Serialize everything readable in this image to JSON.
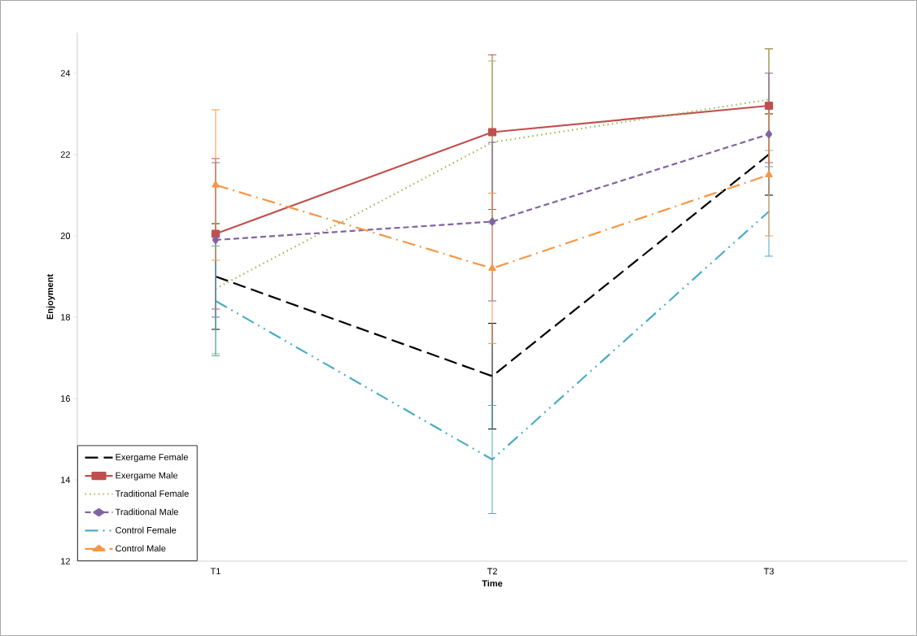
{
  "chart_data": {
    "type": "line",
    "xlabel": "Time",
    "ylabel": "Enjoyment",
    "categories": [
      "T1",
      "T2",
      "T3"
    ],
    "ylim": [
      12,
      25
    ],
    "yticks": [
      12,
      14,
      16,
      18,
      20,
      22,
      24
    ],
    "grid": false,
    "legend": "bottom left",
    "series": [
      {
        "name": "Exergame Female",
        "color": "#000000",
        "values": [
          19.0,
          16.55,
          22.0
        ],
        "errors": [
          1.3,
          1.3,
          1.0
        ],
        "marker": "none",
        "line_style": "longdashed"
      },
      {
        "name": "Exergame Male",
        "color": "#c0504d",
        "values": [
          20.05,
          22.55,
          23.2
        ],
        "errors": [
          1.85,
          1.9,
          1.4
        ],
        "marker": "square",
        "line_style": "solid"
      },
      {
        "name": "Traditional Female",
        "color": "#9bbb59",
        "values": [
          18.7,
          22.3,
          23.35
        ],
        "errors": [
          1.6,
          2.0,
          1.25
        ],
        "marker": "none",
        "line_style": "dotted"
      },
      {
        "name": "Traditional Male",
        "color": "#8064a2",
        "values": [
          19.9,
          20.35,
          22.5
        ],
        "errors": [
          1.9,
          1.95,
          1.5
        ],
        "marker": "diamond",
        "line_style": "dashed"
      },
      {
        "name": "Control Female",
        "color": "#4bacc6",
        "values": [
          18.4,
          14.5,
          20.6
        ],
        "errors": [
          1.35,
          1.33,
          1.1
        ],
        "marker": "none",
        "line_style": "dashdotdotted"
      },
      {
        "name": "Control Male",
        "color": "#f79646",
        "values": [
          21.25,
          19.2,
          21.5
        ],
        "errors": [
          1.85,
          1.85,
          1.5
        ],
        "marker": "triangle",
        "line_style": "dashdotted"
      }
    ]
  }
}
